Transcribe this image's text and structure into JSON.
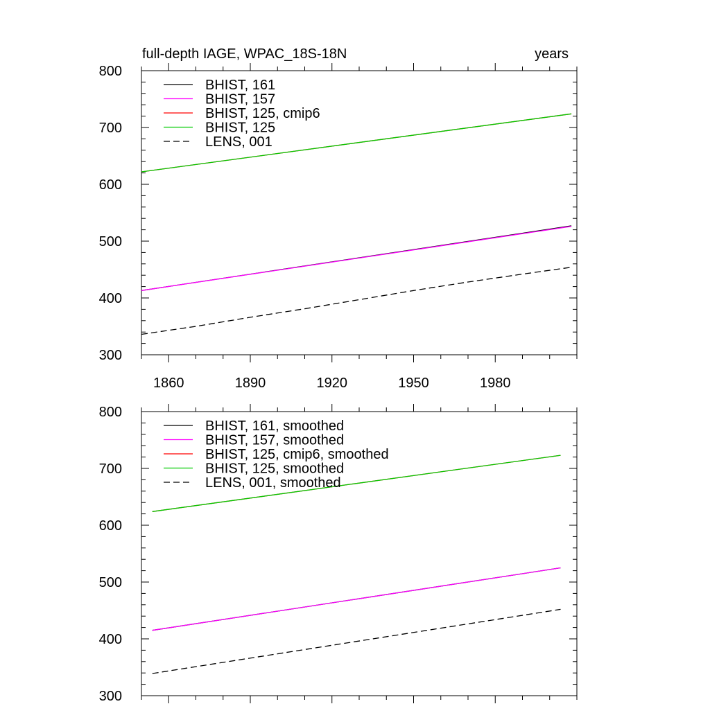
{
  "header": {
    "title_left": "full-depth IAGE, WPAC_18S-18N",
    "title_right": "years"
  },
  "chart_data": [
    {
      "type": "line",
      "title": "full-depth IAGE, WPAC_18S-18N",
      "units": "years",
      "xlim": [
        1850,
        2010
      ],
      "ylim": [
        300,
        800
      ],
      "x_ticks": [
        1860,
        1890,
        1920,
        1950,
        1980
      ],
      "y_ticks": [
        300,
        400,
        500,
        600,
        700,
        800
      ],
      "legend_position": "top-left",
      "grid": false,
      "series": [
        {
          "name": "BHIST, 161",
          "color": "#000000",
          "dash": "solid",
          "x": [
            1850,
            2008
          ],
          "y": [
            413,
            527
          ]
        },
        {
          "name": "BHIST, 157",
          "color": "#ff00ff",
          "dash": "solid",
          "x": [
            1850,
            2008
          ],
          "y": [
            413,
            526
          ]
        },
        {
          "name": "BHIST, 125, cmip6",
          "color": "#ff0000",
          "dash": "solid",
          "x": [
            1850,
            2008
          ],
          "y": [
            622,
            724
          ]
        },
        {
          "name": "BHIST, 125",
          "color": "#00cc00",
          "dash": "solid",
          "x": [
            1850,
            2008
          ],
          "y": [
            622,
            724
          ]
        },
        {
          "name": "LENS, 001",
          "color": "#000000",
          "dash": "dashed",
          "x": [
            1850,
            1870,
            1890,
            1910,
            1930,
            1950,
            1970,
            1990,
            2008
          ],
          "y": [
            336,
            350,
            366,
            381,
            397,
            413,
            428,
            442,
            454
          ]
        }
      ]
    },
    {
      "type": "line",
      "xlim": [
        1850,
        2010
      ],
      "ylim": [
        300,
        800
      ],
      "x_ticks": [
        1860,
        1890,
        1920,
        1950,
        1980
      ],
      "y_ticks": [
        300,
        400,
        500,
        600,
        700,
        800
      ],
      "legend_position": "top-left",
      "grid": false,
      "series": [
        {
          "name": "BHIST, 161, smoothed",
          "color": "#000000",
          "dash": "solid",
          "x": [
            1854,
            2004
          ],
          "y": [
            415,
            525
          ]
        },
        {
          "name": "BHIST, 157, smoothed",
          "color": "#ff00ff",
          "dash": "solid",
          "x": [
            1854,
            2004
          ],
          "y": [
            415,
            525
          ]
        },
        {
          "name": "BHIST, 125, cmip6, smoothed",
          "color": "#ff0000",
          "dash": "solid",
          "x": [
            1854,
            2004
          ],
          "y": [
            624,
            723
          ]
        },
        {
          "name": "BHIST, 125, smoothed",
          "color": "#00cc00",
          "dash": "solid",
          "x": [
            1854,
            2004
          ],
          "y": [
            624,
            723
          ]
        },
        {
          "name": "LENS, 001, smoothed",
          "color": "#000000",
          "dash": "dashed",
          "x": [
            1854,
            2004
          ],
          "y": [
            339,
            452
          ]
        }
      ]
    }
  ]
}
